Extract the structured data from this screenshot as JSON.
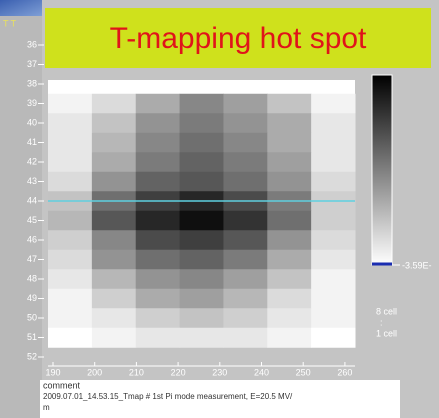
{
  "corner_text": "T T",
  "banner": {
    "title": "T-mapping hot spot"
  },
  "heatmap": {
    "row_labels": [
      "36",
      "37",
      "38",
      "39",
      "40",
      "41",
      "42",
      "43",
      "44",
      "45",
      "46",
      "47",
      "48",
      "49",
      "50",
      "51",
      "52"
    ],
    "column_labels": [
      190,
      200,
      210,
      220,
      230,
      240,
      250,
      260
    ],
    "cell_rows": [
      "39",
      "40",
      "41",
      "42",
      "43",
      "44",
      "45",
      "46",
      "47",
      "48",
      "49",
      "50",
      "51"
    ],
    "cells": [
      [
        5,
        15,
        35,
        50,
        40,
        25,
        5
      ],
      [
        10,
        25,
        45,
        55,
        45,
        35,
        10
      ],
      [
        10,
        30,
        50,
        60,
        50,
        35,
        10
      ],
      [
        10,
        35,
        55,
        65,
        55,
        40,
        10
      ],
      [
        15,
        45,
        65,
        70,
        60,
        45,
        15
      ],
      [
        25,
        60,
        80,
        90,
        75,
        55,
        20
      ],
      [
        30,
        70,
        90,
        100,
        85,
        60,
        20
      ],
      [
        20,
        50,
        75,
        80,
        70,
        45,
        15
      ],
      [
        15,
        45,
        60,
        65,
        55,
        35,
        10
      ],
      [
        10,
        30,
        45,
        50,
        40,
        25,
        5
      ],
      [
        5,
        20,
        35,
        40,
        30,
        15,
        5
      ],
      [
        5,
        10,
        20,
        25,
        20,
        10,
        5
      ],
      [
        0,
        5,
        10,
        10,
        10,
        5,
        0
      ]
    ],
    "marker_row": "44"
  },
  "colorbar": {
    "label": "-3.59E-",
    "legend": [
      "8 cell",
      ":",
      "1 cell"
    ]
  },
  "comment": {
    "heading": "comment",
    "lines": [
      "2009.07.01_14.53.15_Tmap # 1st Pi mode measurement, E=20.5 MV/",
      "m"
    ]
  }
}
